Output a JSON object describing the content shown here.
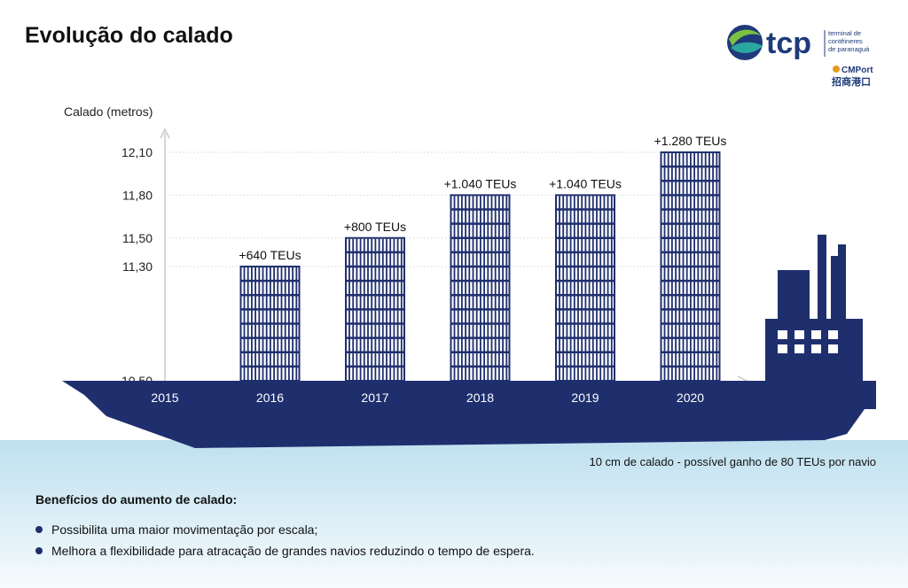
{
  "title": "Evolução do calado",
  "logo": {
    "brand": "tcp",
    "tagline_lines": [
      "terminal de",
      "contêineres",
      "de paranaguá"
    ],
    "partner": "CMPort",
    "partner_cn": "招商港口",
    "colors": {
      "navy": "#1f3a7a",
      "teal": "#2aa8a0",
      "green": "#7cc142",
      "orange": "#e79a1f"
    }
  },
  "chart_data": {
    "type": "bar",
    "ylabel": "Calado (metros)",
    "categories": [
      "2015",
      "2016",
      "2017",
      "2018",
      "2019",
      "2020"
    ],
    "values": [
      10.5,
      11.3,
      11.5,
      11.8,
      11.8,
      12.1
    ],
    "data_labels": [
      "",
      "+640 TEUs",
      "+800 TEUs",
      "+1.040 TEUs",
      "+1.040 TEUs",
      "+1.280 TEUs"
    ],
    "y_ticks": [
      "10,50",
      "11,30",
      "11,50",
      "11,80",
      "12,10"
    ],
    "y_tick_values": [
      10.5,
      11.3,
      11.5,
      11.8,
      12.1
    ],
    "ylim": [
      10.5,
      12.1
    ],
    "grid": true,
    "colors": {
      "hull": "#1f2f6e",
      "container": "#1f2f6e",
      "water_top": "#bfe0ef",
      "water_bottom": "#eef7fb"
    }
  },
  "note": "10 cm de calado - possível ganho de 80 TEUs por navio",
  "benefits": {
    "title": "Benefícios do aumento de calado:",
    "items": [
      "Possibilita uma maior movimentação por escala;",
      "Melhora a flexibilidade para atracação de grandes navios reduzindo o tempo de espera."
    ]
  }
}
